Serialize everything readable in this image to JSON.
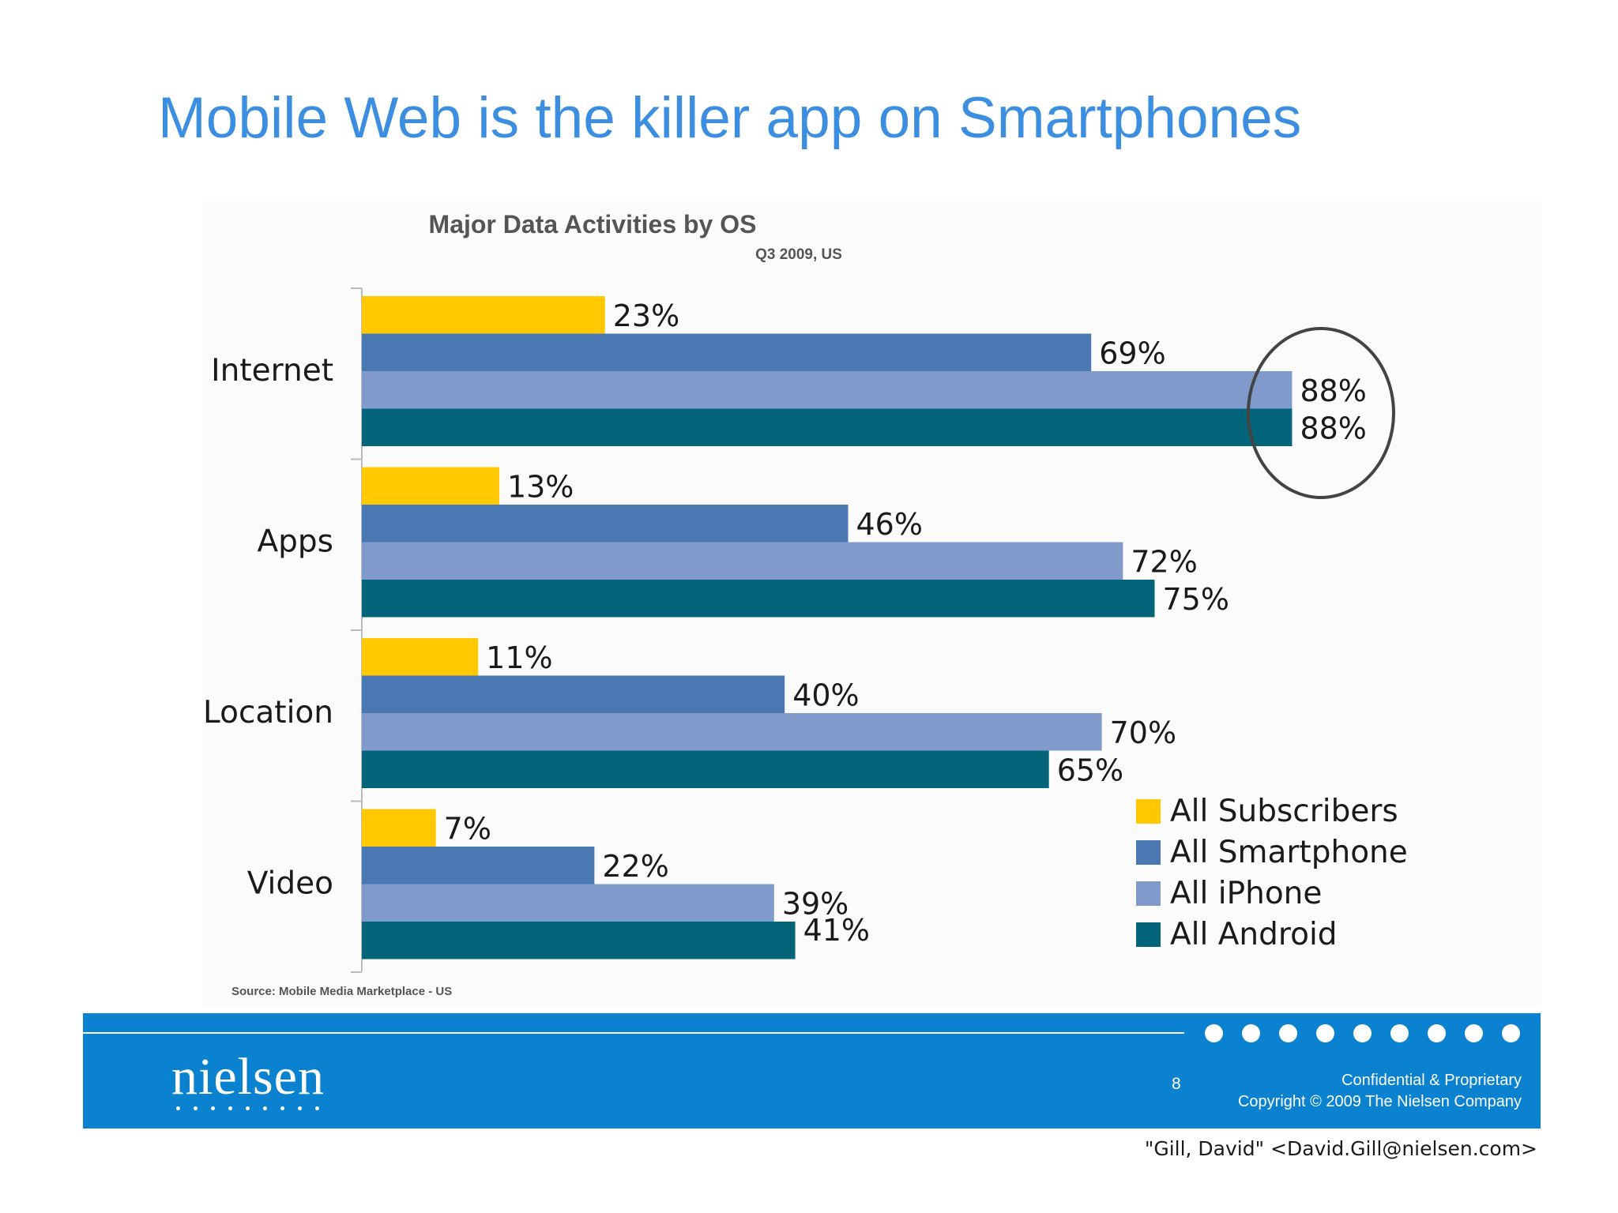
{
  "slide": {
    "title": "Mobile Web is the killer app on Smartphones"
  },
  "chart_data": {
    "type": "bar",
    "orientation": "horizontal",
    "title": "Major Data Activities by OS",
    "subtitle": "Q3 2009, US",
    "categories": [
      "Internet",
      "Apps",
      "Location",
      "Video"
    ],
    "series": [
      {
        "name": "All Subscribers",
        "color": "#ffc800",
        "values": [
          23,
          13,
          11,
          7
        ]
      },
      {
        "name": "All Smartphone",
        "color": "#4a78b3",
        "values": [
          69,
          46,
          40,
          22
        ]
      },
      {
        "name": "All iPhone",
        "color": "#809bcb",
        "values": [
          88,
          72,
          70,
          39
        ]
      },
      {
        "name": "All Android",
        "color": "#04657a",
        "values": [
          88,
          75,
          65,
          41
        ]
      }
    ],
    "value_suffix": "%",
    "xlim": [
      0,
      100
    ],
    "legend_position": "bottom-right",
    "annotation": "circle around Internet iPhone and Android values (88%)",
    "source": "Source: Mobile Media Marketplace - US"
  },
  "footer": {
    "brand": "nielsen",
    "page_number": "8",
    "confidential": "Confidential & Proprietary",
    "copyright": "Copyright © 2009 The Nielsen Company"
  },
  "email_line": "\"Gill, David\" <David.Gill@nielsen.com>"
}
